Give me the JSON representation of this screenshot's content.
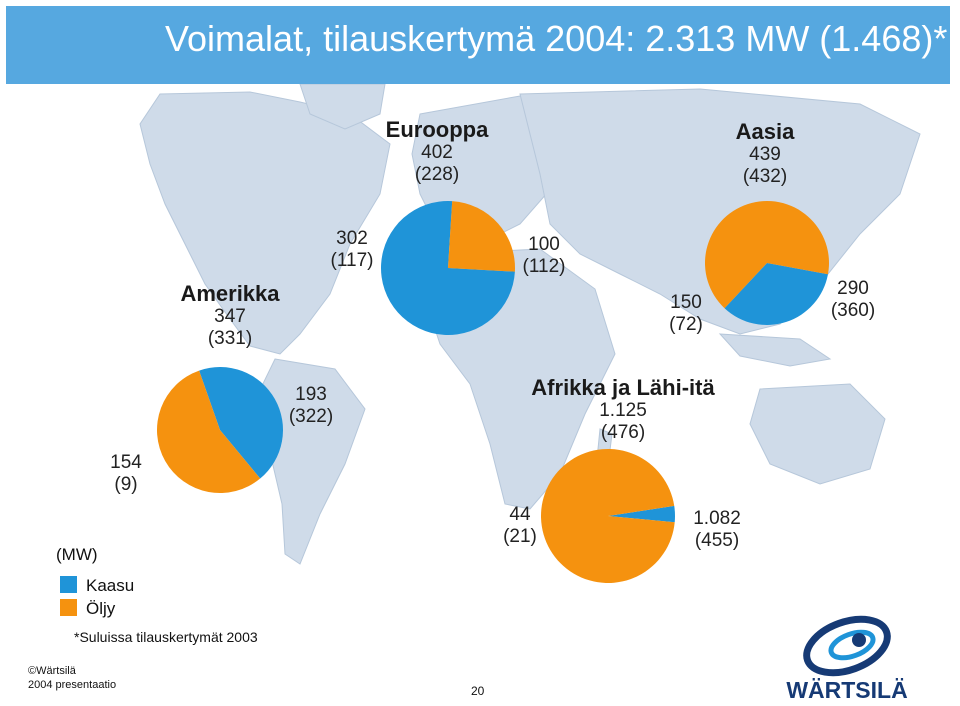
{
  "title": "Voimalat, tilauskertymä 2004: 2.313 MW (1.468)*",
  "colors": {
    "kaasu": "#1f94d8",
    "oljy": "#f5920f",
    "title_bar": "#56a8e0",
    "map_land": "#cfdbe9",
    "logo_navy": "#163a75"
  },
  "regions": {
    "eurooppa": {
      "name": "Eurooppa",
      "total": "402",
      "prev": "(228)",
      "kaasu_value": "302",
      "kaasu_prev": "(117)",
      "oljy_value": "100",
      "oljy_prev": "(112)"
    },
    "aasia": {
      "name": "Aasia",
      "total": "439",
      "prev": "(432)",
      "kaasu_value": "150",
      "kaasu_prev": "(72)",
      "oljy_value": "290",
      "oljy_prev": "(360)"
    },
    "amerikka": {
      "name": "Amerikka",
      "total": "347",
      "prev": "(331)",
      "kaasu_value": "154",
      "kaasu_prev": "(9)",
      "oljy_value": "193",
      "oljy_prev": "(322)"
    },
    "afrikka": {
      "name": "Afrikka ja Lähi-itä",
      "total": "1.125",
      "prev": "(476)",
      "kaasu_value": "44",
      "kaasu_prev": "(21)",
      "oljy_value": "1.082",
      "oljy_prev": "(455)"
    }
  },
  "legend": {
    "unit": "(MW)",
    "kaasu": "Kaasu",
    "oljy": "Öljy"
  },
  "footnote": "*Suluissa tilauskertymät 2003",
  "footer": {
    "copyright": "©Wärtsilä",
    "subtitle": "2004 presentaatio",
    "page": "20"
  },
  "logo_text": "WÄRTSILÄ",
  "chart_data": [
    {
      "type": "pie",
      "title": "Eurooppa",
      "categories": [
        "Kaasu",
        "Öljy"
      ],
      "values": [
        302,
        100
      ],
      "values_2003": [
        117,
        112
      ],
      "total": 402,
      "total_2003": 228
    },
    {
      "type": "pie",
      "title": "Aasia",
      "categories": [
        "Kaasu",
        "Öljy"
      ],
      "values": [
        150,
        290
      ],
      "values_2003": [
        72,
        360
      ],
      "total": 439,
      "total_2003": 432
    },
    {
      "type": "pie",
      "title": "Amerikka",
      "categories": [
        "Kaasu",
        "Öljy"
      ],
      "values": [
        154,
        193
      ],
      "values_2003": [
        9,
        322
      ],
      "total": 347,
      "total_2003": 331
    },
    {
      "type": "pie",
      "title": "Afrikka ja Lähi-itä",
      "categories": [
        "Kaasu",
        "Öljy"
      ],
      "values": [
        44,
        1082
      ],
      "values_2003": [
        21,
        455
      ],
      "total": 1125,
      "total_2003": 476
    }
  ]
}
